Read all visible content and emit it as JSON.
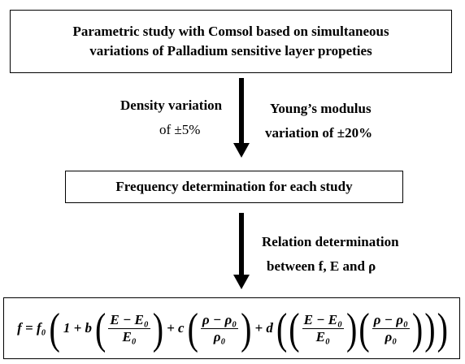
{
  "boxes": {
    "study": [
      "Parametric study with Comsol based on simultaneous",
      "variations of Palladium sensitive layer propeties"
    ],
    "frequency": "Frequency determination for each study"
  },
  "density": [
    "Density  variation",
    "of ±5%"
  ],
  "young": [
    "Young’s modulus",
    "variation of  ±20%"
  ],
  "relation": [
    "Relation determination",
    "between f, E and ρ"
  ],
  "formula": [
    {
      "text": "f = f₀"
    },
    {
      "paren": "("
    },
    {
      "text": "1 + b"
    },
    {
      "paren": "("
    },
    {
      "num": "E − E₀",
      "den": "E₀"
    },
    {
      "paren": ")"
    },
    {
      "text": "+ c"
    },
    {
      "paren": "("
    },
    {
      "num": "ρ − ρ₀",
      "den": "ρ₀"
    },
    {
      "paren": ")"
    },
    {
      "text": "+ d"
    },
    {
      "paren": "("
    },
    {
      "paren": "("
    },
    {
      "num": "E − E₀",
      "den": "E₀"
    },
    {
      "paren": ")"
    },
    {
      "paren": "("
    },
    {
      "num": "ρ − ρ₀",
      "den": "ρ₀"
    },
    {
      "paren": ")"
    },
    {
      "paren": ")"
    },
    {
      "paren": ")"
    }
  ]
}
